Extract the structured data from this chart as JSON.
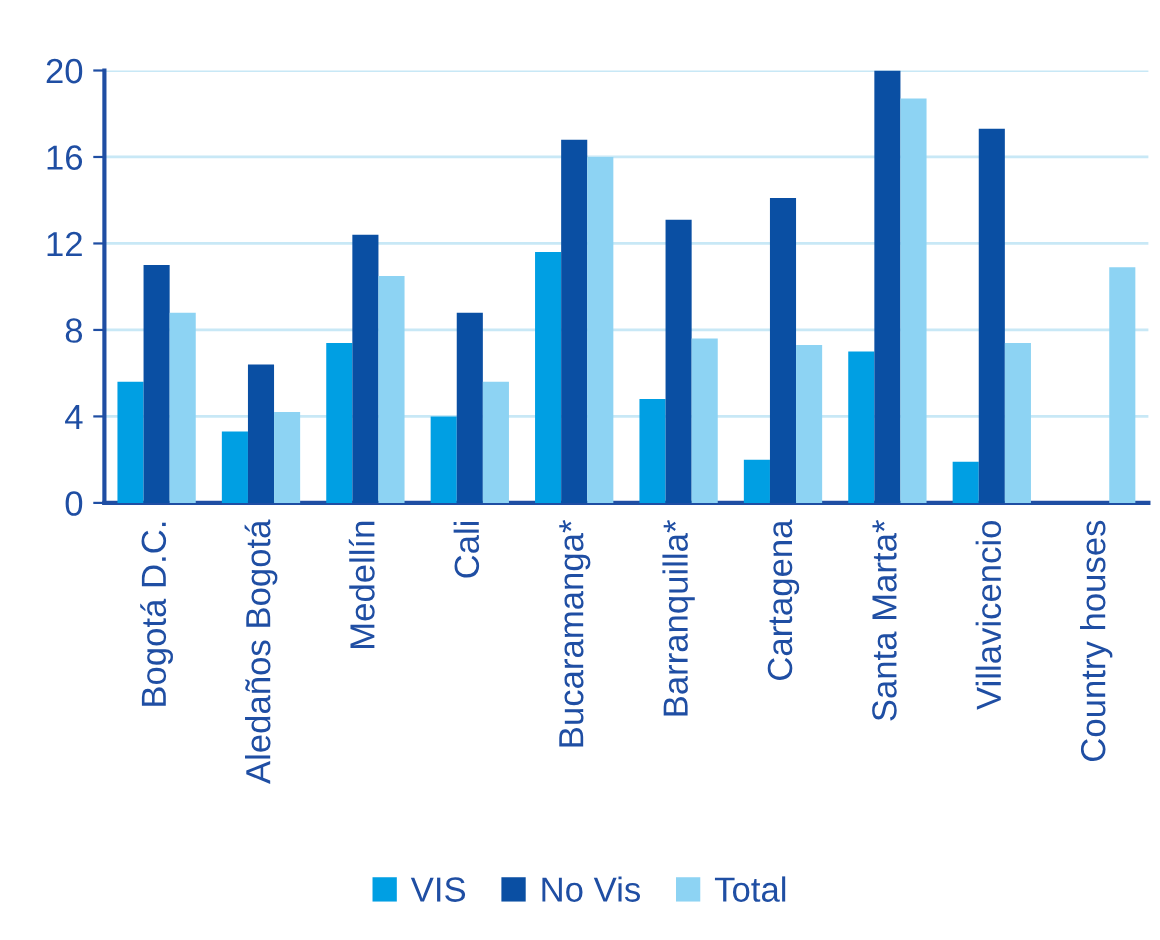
{
  "chart_data": {
    "type": "bar",
    "categories": [
      "Bogotá D.C.",
      "Aledaños Bogotá",
      "Medellín",
      "Cali",
      "Bucaramanga*",
      "Barranquilla*",
      "Cartagena",
      "Santa Marta*",
      "Villavicencio",
      "Country houses"
    ],
    "series": [
      {
        "name": "VIS",
        "color": "#009fe3",
        "values": [
          5.6,
          3.3,
          7.4,
          4.0,
          11.6,
          4.8,
          2.0,
          7.0,
          1.9,
          null
        ]
      },
      {
        "name": "No Vis",
        "color": "#0a4fa3",
        "values": [
          11.0,
          6.4,
          12.4,
          8.8,
          16.8,
          13.1,
          14.1,
          20.0,
          17.3,
          null
        ]
      },
      {
        "name": "Total",
        "color": "#8dd3f3",
        "values": [
          8.8,
          4.2,
          10.5,
          5.6,
          16.0,
          7.6,
          7.3,
          18.7,
          7.4,
          10.9
        ]
      }
    ],
    "ylim": [
      0,
      20
    ],
    "yticks": [
      0,
      4,
      8,
      12,
      16,
      20
    ],
    "grid": "y",
    "legend": "bottom"
  }
}
